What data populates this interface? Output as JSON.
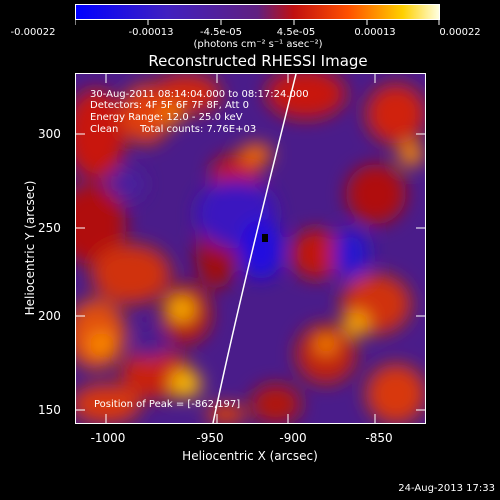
{
  "colorbar": {
    "ticks": [
      "-0.00022",
      "-0.00013",
      "-4.5e-05",
      "4.5e-05",
      "0.00013",
      "0.00022"
    ],
    "units": "(photons cm⁻² s⁻¹ asec⁻²)"
  },
  "title": "Reconstructed RHESSI Image",
  "info": {
    "time_range": "30-Aug-2011 08:14:04.000 to 08:17:24.000",
    "detectors": "Detectors: 4F 5F 6F 7F 8F, Att 0",
    "energy": "Energy Range: 12.0 - 25.0 keV",
    "clean_label": "Clean",
    "total_counts": "Total counts: 7.76E+03",
    "peak": "Position of Peak = [-862,197]"
  },
  "axes": {
    "x_label": "Heliocentric X (arcsec)",
    "y_label": "Heliocentric Y (arcsec)",
    "x_ticks": [
      "-1000",
      "-950",
      "-900",
      "-850"
    ],
    "y_ticks": [
      "300",
      "250",
      "200",
      "150"
    ]
  },
  "timestamp": "24-Aug-2013 17:33",
  "colors": {
    "background": "#000000",
    "negative": "#1a00ff",
    "zero": "#401080",
    "positive_mid": "#ff3000",
    "positive_high": "#ffe000",
    "max": "#ffffff"
  }
}
